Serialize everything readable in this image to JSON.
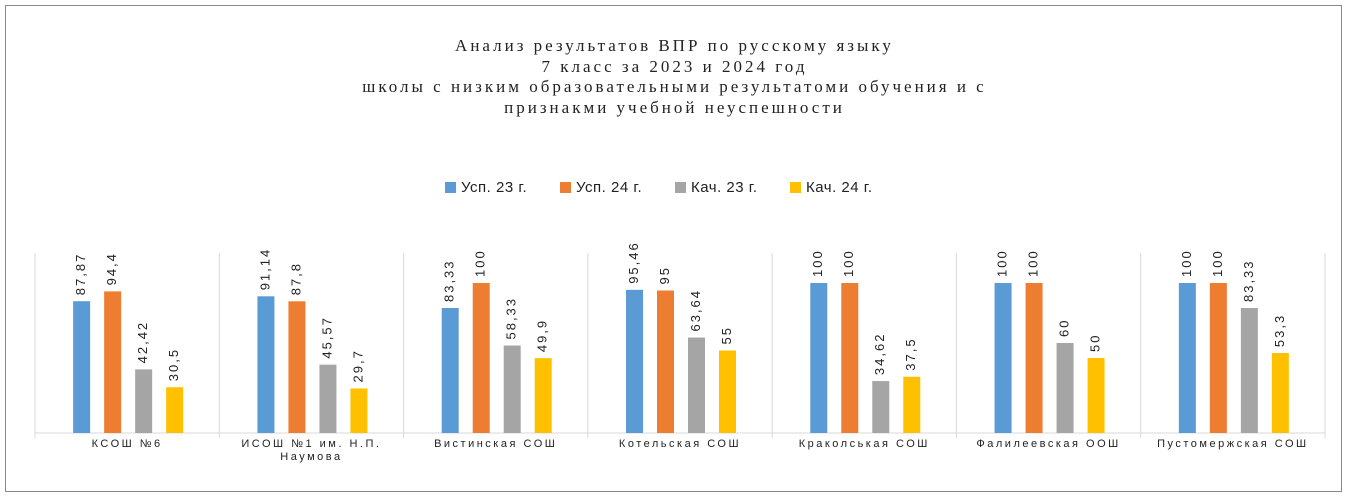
{
  "chart_data": {
    "type": "bar",
    "title": "Анализ результатов ВПР по русскому языку\n7 класс за 2023 и 2024 год\nшколы с низким образовательными результатоми обучения и с\nпризнакми учебной неуспешности",
    "categories": [
      "КСОШ №6",
      "ИСОШ №1 им. Н.П. Наумова",
      "Вистинская СОШ",
      "Котельская СОШ",
      "Краколськая СОШ",
      "Фалилеевская ООШ",
      "Пустомержская СОШ"
    ],
    "series": [
      {
        "name": "Усп. 23 г.",
        "color": "#5b9bd5",
        "values": [
          87.87,
          91.14,
          83.33,
          95.46,
          100,
          100,
          100
        ],
        "value_labels": [
          "87,87",
          "91,14",
          "83,33",
          "95,46",
          "100",
          "100",
          "100"
        ]
      },
      {
        "name": "Усп. 24 г.",
        "color": "#ed7d31",
        "values": [
          94.4,
          87.8,
          100,
          95,
          100,
          100,
          100
        ],
        "value_labels": [
          "94,4",
          "87,8",
          "100",
          "95",
          "100",
          "100",
          "100"
        ]
      },
      {
        "name": "Кач. 23 г.",
        "color": "#a5a5a5",
        "values": [
          42.42,
          45.57,
          58.33,
          63.64,
          34.62,
          60,
          83.33
        ],
        "value_labels": [
          "42,42",
          "45,57",
          "58,33",
          "63,64",
          "34,62",
          "60",
          "83,33"
        ]
      },
      {
        "name": "Кач. 24 г.",
        "color": "#ffc000",
        "values": [
          30.5,
          29.7,
          49.9,
          55,
          37.5,
          50,
          53.3
        ],
        "value_labels": [
          "30,5",
          "29,7",
          "49,9",
          "55",
          "37,5",
          "50",
          "53,3"
        ]
      }
    ],
    "ylim": [
      0,
      120
    ],
    "legend": "top"
  }
}
